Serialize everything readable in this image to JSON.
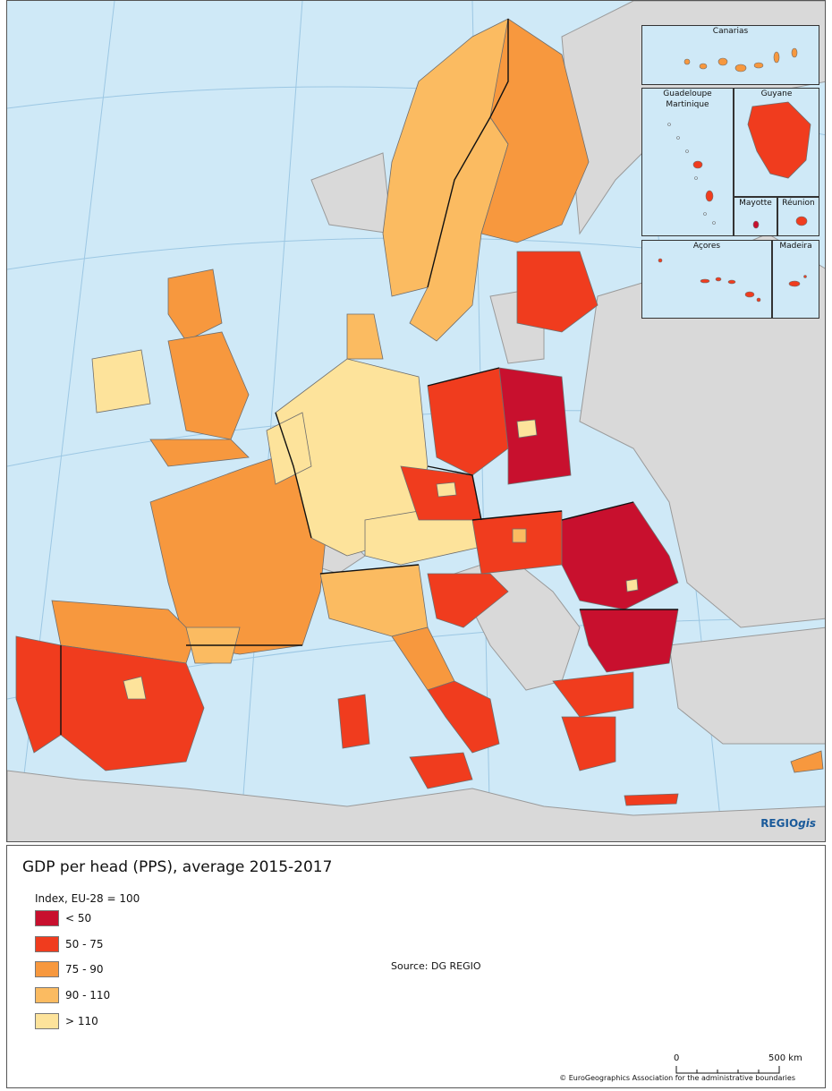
{
  "legend": {
    "title": "GDP per head (PPS), average 2015-2017",
    "subtitle": "Index, EU-28 = 100",
    "classes": [
      {
        "label": "< 50",
        "color": "#c8102e"
      },
      {
        "label": "50 - 75",
        "color": "#f03c1e"
      },
      {
        "label": "75 - 90",
        "color": "#f7983e"
      },
      {
        "label": "90 - 110",
        "color": "#fbbb61"
      },
      {
        "label": "> 110",
        "color": "#fde39b"
      }
    ]
  },
  "colors": {
    "sea": "#cfe9f7",
    "non_eu_land": "#d9d9d9",
    "border": "#6e6e6e",
    "national_border": "#111111"
  },
  "insets": {
    "canarias": "Canarias",
    "guadeloupe": "Guadeloupe",
    "martinique": "Martinique",
    "guyane": "Guyane",
    "mayotte": "Mayotte",
    "reunion": "Réunion",
    "acores": "Açores",
    "madeira": "Madeira"
  },
  "brand": {
    "main": "REGIO",
    "suffix": "gis"
  },
  "source": "Source: DG REGIO",
  "scale": {
    "zero": "0",
    "end": "500 km"
  },
  "copyright": "© EuroGeographics Association for the administrative boundaries"
}
